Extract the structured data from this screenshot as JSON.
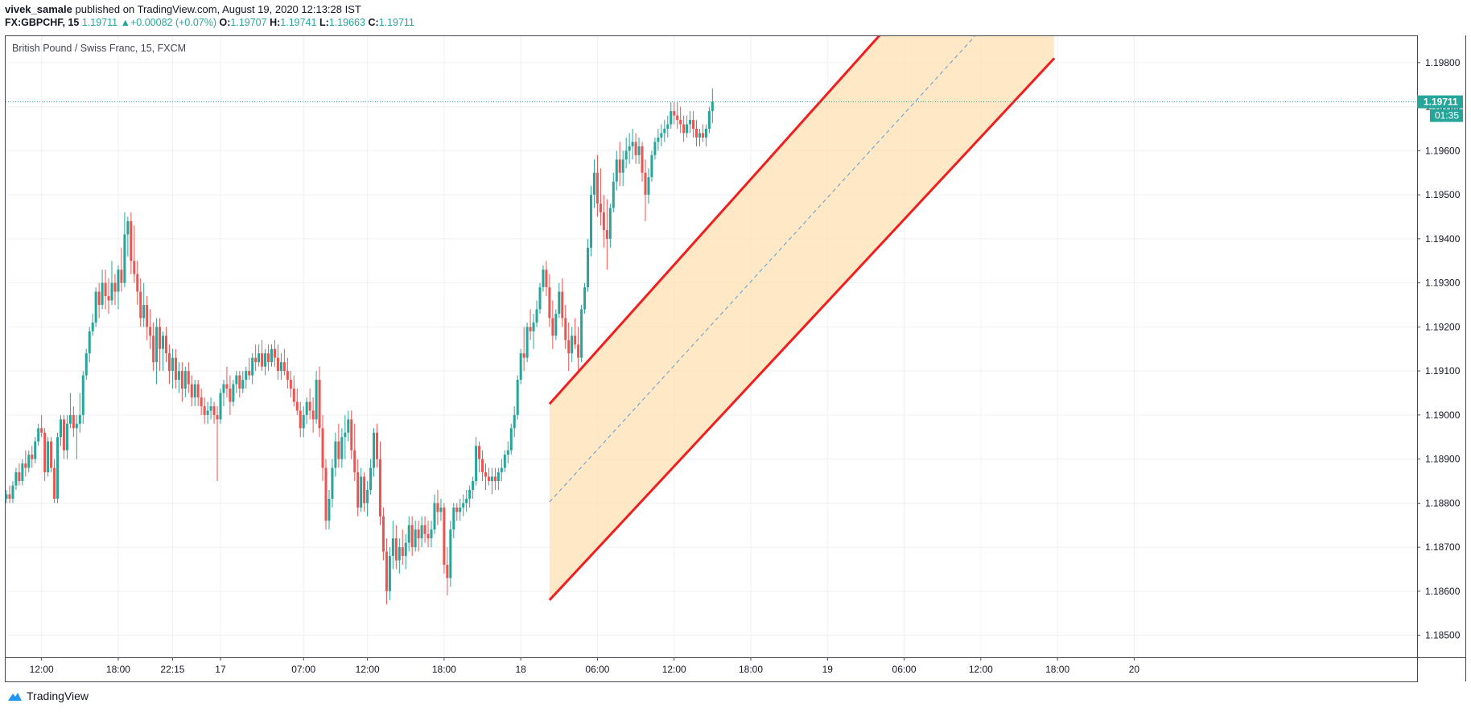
{
  "header": {
    "author": "vivek_samale",
    "published_text": "published on TradingView.com, August 19, 2020 12:13:28 IST",
    "symbol": "FX:GBPCHF, 15",
    "last": "1.19711",
    "change": "+0.00082 (+0.07%)",
    "open_label": "O:",
    "open": "1.19707",
    "high_label": "H:",
    "high": "1.19741",
    "low_label": "L:",
    "low": "1.19663",
    "close_label": "C:",
    "close": "1.19711"
  },
  "footer": {
    "brand": "TradingView",
    "logo_icon": "tradingview-cloud-icon"
  },
  "colors": {
    "up": "#26a69a",
    "down": "#ef5350",
    "channel": "#f01e1e",
    "fill": "#ffe0b2",
    "mid": "#5b9bd5"
  },
  "chart_data": {
    "type": "candlestick",
    "title": "British Pound / Swiss Franc, 15, FXCM",
    "ylim": [
      1.1845,
      1.1986
    ],
    "y_ticks": [
      "1.19800",
      "1.19700",
      "1.19600",
      "1.19500",
      "1.19400",
      "1.19300",
      "1.19200",
      "1.19100",
      "1.19000",
      "1.18900",
      "1.18800",
      "1.18700",
      "1.18600",
      "1.18500"
    ],
    "x_ticks": [
      {
        "label": "12:00",
        "i": 11
      },
      {
        "label": "18:00",
        "i": 35
      },
      {
        "label": "22:15",
        "i": 52
      },
      {
        "label": "17",
        "i": 67
      },
      {
        "label": "07:00",
        "i": 93
      },
      {
        "label": "12:00",
        "i": 113
      },
      {
        "label": "18:00",
        "i": 137
      },
      {
        "label": "18",
        "i": 161
      },
      {
        "label": "06:00",
        "i": 185
      },
      {
        "label": "12:00",
        "i": 209
      },
      {
        "label": "18:00",
        "i": 233
      },
      {
        "label": "19",
        "i": 257
      },
      {
        "label": "06:00",
        "i": 281
      },
      {
        "label": "12:00",
        "i": 305
      },
      {
        "label": "18:00",
        "i": 329
      },
      {
        "label": "20",
        "i": 353
      }
    ],
    "last_price": "1.19711",
    "countdown": "01:35",
    "channel": {
      "start_i": 170,
      "end_i": 328,
      "upper": [
        1.19025,
        1.20305
      ],
      "lower": [
        1.1858,
        1.1981
      ]
    },
    "ohlc": [
      [
        1.1881,
        1.1883,
        1.188,
        1.1882
      ],
      [
        1.1882,
        1.1884,
        1.188,
        1.1881
      ],
      [
        1.1881,
        1.1885,
        1.188,
        1.1884
      ],
      [
        1.1884,
        1.1888,
        1.1883,
        1.1887
      ],
      [
        1.1887,
        1.1889,
        1.1884,
        1.1885
      ],
      [
        1.1885,
        1.189,
        1.1884,
        1.1889
      ],
      [
        1.1889,
        1.1892,
        1.1886,
        1.1888
      ],
      [
        1.1888,
        1.1892,
        1.1887,
        1.1891
      ],
      [
        1.1891,
        1.1893,
        1.1888,
        1.189
      ],
      [
        1.189,
        1.1895,
        1.1889,
        1.1894
      ],
      [
        1.1894,
        1.1898,
        1.1893,
        1.1897
      ],
      [
        1.1897,
        1.19,
        1.1895,
        1.1896
      ],
      [
        1.1896,
        1.1897,
        1.1885,
        1.1887
      ],
      [
        1.1887,
        1.1895,
        1.1886,
        1.1894
      ],
      [
        1.1894,
        1.1895,
        1.1887,
        1.1888
      ],
      [
        1.1888,
        1.189,
        1.188,
        1.1881
      ],
      [
        1.1881,
        1.1896,
        1.188,
        1.1895
      ],
      [
        1.1895,
        1.19,
        1.1893,
        1.1899
      ],
      [
        1.1899,
        1.19,
        1.189,
        1.1892
      ],
      [
        1.1892,
        1.19,
        1.189,
        1.1898
      ],
      [
        1.1898,
        1.1905,
        1.1897,
        1.19
      ],
      [
        1.19,
        1.1902,
        1.1895,
        1.1897
      ],
      [
        1.1897,
        1.19,
        1.189,
        1.1898
      ],
      [
        1.1898,
        1.1905,
        1.1896,
        1.19
      ],
      [
        1.19,
        1.191,
        1.1898,
        1.1909
      ],
      [
        1.1909,
        1.1915,
        1.1908,
        1.1914
      ],
      [
        1.1914,
        1.192,
        1.1912,
        1.1919
      ],
      [
        1.1919,
        1.1923,
        1.1918,
        1.1921
      ],
      [
        1.1921,
        1.1929,
        1.192,
        1.1928
      ],
      [
        1.1928,
        1.193,
        1.1922,
        1.1925
      ],
      [
        1.1925,
        1.1933,
        1.1924,
        1.193
      ],
      [
        1.193,
        1.1933,
        1.1924,
        1.1927
      ],
      [
        1.1927,
        1.1931,
        1.1923,
        1.1926
      ],
      [
        1.1926,
        1.1935,
        1.1925,
        1.193
      ],
      [
        1.193,
        1.1932,
        1.1925,
        1.1928
      ],
      [
        1.1928,
        1.1934,
        1.1924,
        1.1933
      ],
      [
        1.1933,
        1.1938,
        1.1928,
        1.193
      ],
      [
        1.193,
        1.1946,
        1.1929,
        1.1941
      ],
      [
        1.1941,
        1.1945,
        1.1936,
        1.1944
      ],
      [
        1.1944,
        1.1946,
        1.1932,
        1.1935
      ],
      [
        1.1935,
        1.1943,
        1.193,
        1.1932
      ],
      [
        1.1932,
        1.1935,
        1.1925,
        1.1928
      ],
      [
        1.1928,
        1.1931,
        1.192,
        1.1922
      ],
      [
        1.1922,
        1.193,
        1.192,
        1.1925
      ],
      [
        1.1925,
        1.1927,
        1.1917,
        1.192
      ],
      [
        1.192,
        1.1924,
        1.1915,
        1.1918
      ],
      [
        1.1918,
        1.1921,
        1.191,
        1.1912
      ],
      [
        1.1912,
        1.1922,
        1.1907,
        1.192
      ],
      [
        1.192,
        1.1922,
        1.191,
        1.1915
      ],
      [
        1.1915,
        1.1919,
        1.191,
        1.1918
      ],
      [
        1.1918,
        1.192,
        1.1912,
        1.1914
      ],
      [
        1.1914,
        1.1916,
        1.1907,
        1.191
      ],
      [
        1.191,
        1.1915,
        1.1906,
        1.1913
      ],
      [
        1.1913,
        1.1915,
        1.1906,
        1.1908
      ],
      [
        1.1908,
        1.1912,
        1.1905,
        1.191
      ],
      [
        1.191,
        1.1912,
        1.1903,
        1.1906
      ],
      [
        1.1906,
        1.1911,
        1.1904,
        1.191
      ],
      [
        1.191,
        1.1912,
        1.1905,
        1.1907
      ],
      [
        1.1907,
        1.1909,
        1.1902,
        1.1904
      ],
      [
        1.1904,
        1.1908,
        1.1902,
        1.1907
      ],
      [
        1.1907,
        1.1908,
        1.1902,
        1.1904
      ],
      [
        1.1904,
        1.1906,
        1.19,
        1.1902
      ],
      [
        1.1902,
        1.1904,
        1.1898,
        1.19
      ],
      [
        1.19,
        1.1903,
        1.1898,
        1.1901
      ],
      [
        1.1901,
        1.1904,
        1.1899,
        1.1902
      ],
      [
        1.1902,
        1.1903,
        1.1898,
        1.19
      ],
      [
        1.19,
        1.1902,
        1.1885,
        1.1899
      ],
      [
        1.1899,
        1.1906,
        1.1898,
        1.1905
      ],
      [
        1.1905,
        1.1908,
        1.1902,
        1.1907
      ],
      [
        1.1907,
        1.1911,
        1.1904,
        1.1906
      ],
      [
        1.1906,
        1.1909,
        1.19,
        1.1903
      ],
      [
        1.1903,
        1.1908,
        1.1902,
        1.1907
      ],
      [
        1.1907,
        1.191,
        1.1905,
        1.1909
      ],
      [
        1.1909,
        1.191,
        1.1904,
        1.1906
      ],
      [
        1.1906,
        1.191,
        1.1905,
        1.1908
      ],
      [
        1.1908,
        1.1911,
        1.1906,
        1.191
      ],
      [
        1.191,
        1.1913,
        1.1908,
        1.1909
      ],
      [
        1.1909,
        1.1914,
        1.1907,
        1.1913
      ],
      [
        1.1913,
        1.1916,
        1.191,
        1.1912
      ],
      [
        1.1912,
        1.1916,
        1.1911,
        1.1914
      ],
      [
        1.1914,
        1.1917,
        1.191,
        1.1911
      ],
      [
        1.1911,
        1.1915,
        1.1909,
        1.1914
      ],
      [
        1.1914,
        1.1916,
        1.191,
        1.1912
      ],
      [
        1.1912,
        1.1916,
        1.1911,
        1.1915
      ],
      [
        1.1915,
        1.1917,
        1.1911,
        1.1913
      ],
      [
        1.1913,
        1.1916,
        1.1908,
        1.191
      ],
      [
        1.191,
        1.1914,
        1.1908,
        1.1912
      ],
      [
        1.1912,
        1.1915,
        1.1909,
        1.191
      ],
      [
        1.191,
        1.1913,
        1.1906,
        1.1908
      ],
      [
        1.1908,
        1.191,
        1.1904,
        1.1906
      ],
      [
        1.1906,
        1.1909,
        1.1902,
        1.1903
      ],
      [
        1.1903,
        1.1906,
        1.19,
        1.1901
      ],
      [
        1.1901,
        1.1903,
        1.1895,
        1.1897
      ],
      [
        1.1897,
        1.1902,
        1.1895,
        1.19
      ],
      [
        1.19,
        1.1904,
        1.1898,
        1.1903
      ],
      [
        1.1903,
        1.1906,
        1.1899,
        1.1901
      ],
      [
        1.1901,
        1.1904,
        1.1896,
        1.1899
      ],
      [
        1.1899,
        1.191,
        1.1898,
        1.1908
      ],
      [
        1.1908,
        1.1911,
        1.1895,
        1.1897
      ],
      [
        1.1897,
        1.19,
        1.1885,
        1.1888
      ],
      [
        1.1888,
        1.189,
        1.1874,
        1.1876
      ],
      [
        1.1876,
        1.1883,
        1.1874,
        1.1881
      ],
      [
        1.1881,
        1.189,
        1.1879,
        1.1888
      ],
      [
        1.1888,
        1.1896,
        1.1886,
        1.1894
      ],
      [
        1.1894,
        1.1898,
        1.1888,
        1.189
      ],
      [
        1.189,
        1.1897,
        1.1888,
        1.1895
      ],
      [
        1.1895,
        1.19,
        1.189,
        1.1896
      ],
      [
        1.1896,
        1.1901,
        1.1894,
        1.1899
      ],
      [
        1.1899,
        1.1901,
        1.189,
        1.1892
      ],
      [
        1.1892,
        1.1898,
        1.1885,
        1.1887
      ],
      [
        1.1887,
        1.189,
        1.1877,
        1.1879
      ],
      [
        1.1879,
        1.1888,
        1.1878,
        1.1886
      ],
      [
        1.1886,
        1.1887,
        1.1878,
        1.188
      ],
      [
        1.188,
        1.1885,
        1.1877,
        1.1883
      ],
      [
        1.1883,
        1.189,
        1.1882,
        1.1888
      ],
      [
        1.1888,
        1.1897,
        1.1886,
        1.1896
      ],
      [
        1.1896,
        1.1898,
        1.1888,
        1.189
      ],
      [
        1.189,
        1.1894,
        1.1875,
        1.1877
      ],
      [
        1.1877,
        1.1879,
        1.1867,
        1.1869
      ],
      [
        1.1869,
        1.1872,
        1.1857,
        1.186
      ],
      [
        1.186,
        1.187,
        1.1858,
        1.1868
      ],
      [
        1.1868,
        1.1876,
        1.1865,
        1.1872
      ],
      [
        1.1872,
        1.1875,
        1.1865,
        1.1867
      ],
      [
        1.1867,
        1.1872,
        1.1864,
        1.187
      ],
      [
        1.187,
        1.1874,
        1.1866,
        1.1868
      ],
      [
        1.1868,
        1.1873,
        1.1865,
        1.1871
      ],
      [
        1.1871,
        1.1877,
        1.1869,
        1.1875
      ],
      [
        1.1875,
        1.1877,
        1.1868,
        1.187
      ],
      [
        1.187,
        1.1876,
        1.1869,
        1.1874
      ],
      [
        1.1874,
        1.1876,
        1.1869,
        1.1872
      ],
      [
        1.1872,
        1.1877,
        1.187,
        1.1875
      ],
      [
        1.1875,
        1.1877,
        1.1871,
        1.1873
      ],
      [
        1.1873,
        1.1876,
        1.187,
        1.1872
      ],
      [
        1.1872,
        1.1876,
        1.187,
        1.1874
      ],
      [
        1.1874,
        1.1882,
        1.1873,
        1.188
      ],
      [
        1.188,
        1.1883,
        1.1875,
        1.1878
      ],
      [
        1.1878,
        1.1881,
        1.1876,
        1.1879
      ],
      [
        1.1879,
        1.188,
        1.1864,
        1.1866
      ],
      [
        1.1866,
        1.187,
        1.1859,
        1.1863
      ],
      [
        1.1863,
        1.1876,
        1.1861,
        1.1874
      ],
      [
        1.1874,
        1.188,
        1.1872,
        1.1879
      ],
      [
        1.1879,
        1.188,
        1.1876,
        1.1878
      ],
      [
        1.1878,
        1.1881,
        1.1876,
        1.1879
      ],
      [
        1.1879,
        1.1882,
        1.1877,
        1.188
      ],
      [
        1.188,
        1.1883,
        1.1878,
        1.1881
      ],
      [
        1.1881,
        1.1884,
        1.1879,
        1.1883
      ],
      [
        1.1883,
        1.1886,
        1.1881,
        1.1885
      ],
      [
        1.1885,
        1.1895,
        1.1884,
        1.1893
      ],
      [
        1.1893,
        1.1894,
        1.1887,
        1.189
      ],
      [
        1.189,
        1.1892,
        1.1885,
        1.1887
      ],
      [
        1.1887,
        1.1889,
        1.1883,
        1.1886
      ],
      [
        1.1886,
        1.1888,
        1.1884,
        1.1885
      ],
      [
        1.1885,
        1.1888,
        1.1882,
        1.1886
      ],
      [
        1.1886,
        1.1888,
        1.1883,
        1.1885
      ],
      [
        1.1885,
        1.1888,
        1.1883,
        1.1887
      ],
      [
        1.1887,
        1.189,
        1.1885,
        1.1888
      ],
      [
        1.1888,
        1.1892,
        1.1887,
        1.1891
      ],
      [
        1.1891,
        1.1894,
        1.1889,
        1.1892
      ],
      [
        1.1892,
        1.1898,
        1.1891,
        1.1897
      ],
      [
        1.1897,
        1.1902,
        1.1895,
        1.19
      ],
      [
        1.19,
        1.1909,
        1.1899,
        1.1908
      ],
      [
        1.1908,
        1.1915,
        1.1907,
        1.1914
      ],
      [
        1.1914,
        1.192,
        1.191,
        1.1913
      ],
      [
        1.1913,
        1.1921,
        1.1912,
        1.192
      ],
      [
        1.192,
        1.1924,
        1.1917,
        1.1919
      ],
      [
        1.1919,
        1.1923,
        1.1915,
        1.1921
      ],
      [
        1.1921,
        1.1926,
        1.192,
        1.1924
      ],
      [
        1.1924,
        1.193,
        1.1923,
        1.1929
      ],
      [
        1.1929,
        1.1934,
        1.1928,
        1.1933
      ],
      [
        1.1933,
        1.1935,
        1.1927,
        1.1929
      ],
      [
        1.1929,
        1.1932,
        1.192,
        1.1922
      ],
      [
        1.1922,
        1.1926,
        1.1915,
        1.1918
      ],
      [
        1.1918,
        1.1924,
        1.1917,
        1.1923
      ],
      [
        1.1923,
        1.193,
        1.1922,
        1.1928
      ],
      [
        1.1928,
        1.1931,
        1.192,
        1.1922
      ],
      [
        1.1922,
        1.1925,
        1.1915,
        1.1917
      ],
      [
        1.1917,
        1.1921,
        1.191,
        1.1914
      ],
      [
        1.1914,
        1.192,
        1.1912,
        1.1918
      ],
      [
        1.1918,
        1.1922,
        1.1915,
        1.1916
      ],
      [
        1.1916,
        1.192,
        1.191,
        1.1913
      ],
      [
        1.1913,
        1.1925,
        1.1912,
        1.1924
      ],
      [
        1.1924,
        1.193,
        1.1923,
        1.1929
      ],
      [
        1.1929,
        1.194,
        1.1928,
        1.1938
      ],
      [
        1.1938,
        1.1952,
        1.1936,
        1.195
      ],
      [
        1.195,
        1.1958,
        1.1947,
        1.1955
      ],
      [
        1.1955,
        1.1959,
        1.1945,
        1.1948
      ],
      [
        1.1948,
        1.1956,
        1.1943,
        1.1946
      ],
      [
        1.1946,
        1.195,
        1.1938,
        1.1942
      ],
      [
        1.1942,
        1.1949,
        1.1933,
        1.194
      ],
      [
        1.194,
        1.1948,
        1.1938,
        1.1947
      ],
      [
        1.1947,
        1.1955,
        1.1946,
        1.1953
      ],
      [
        1.1953,
        1.196,
        1.1951,
        1.1958
      ],
      [
        1.1958,
        1.1962,
        1.1952,
        1.1955
      ],
      [
        1.1955,
        1.196,
        1.1952,
        1.1958
      ],
      [
        1.1958,
        1.1963,
        1.1956,
        1.196
      ],
      [
        1.196,
        1.1964,
        1.1957,
        1.1961
      ],
      [
        1.1961,
        1.1965,
        1.1958,
        1.1962
      ],
      [
        1.1962,
        1.1964,
        1.1957,
        1.1959
      ],
      [
        1.1959,
        1.1963,
        1.1957,
        1.1961
      ],
      [
        1.1961,
        1.1962,
        1.1953,
        1.1955
      ],
      [
        1.1955,
        1.1958,
        1.1944,
        1.195
      ],
      [
        1.195,
        1.1956,
        1.1948,
        1.1954
      ],
      [
        1.1954,
        1.196,
        1.1953,
        1.1959
      ],
      [
        1.1959,
        1.1963,
        1.1958,
        1.1962
      ],
      [
        1.1962,
        1.1965,
        1.196,
        1.1963
      ],
      [
        1.1963,
        1.1966,
        1.1961,
        1.1964
      ],
      [
        1.1964,
        1.1967,
        1.1962,
        1.1965
      ],
      [
        1.1965,
        1.1968,
        1.1963,
        1.1966
      ],
      [
        1.1966,
        1.1971,
        1.1965,
        1.1969
      ],
      [
        1.1969,
        1.1971,
        1.1966,
        1.1968
      ],
      [
        1.1968,
        1.1971,
        1.1965,
        1.1967
      ],
      [
        1.1967,
        1.197,
        1.1964,
        1.1966
      ],
      [
        1.1966,
        1.1968,
        1.1962,
        1.1964
      ],
      [
        1.1964,
        1.1968,
        1.1963,
        1.1966
      ],
      [
        1.1966,
        1.1969,
        1.1964,
        1.1967
      ],
      [
        1.1967,
        1.1969,
        1.1963,
        1.1965
      ],
      [
        1.1965,
        1.1967,
        1.1961,
        1.1963
      ],
      [
        1.1963,
        1.1965,
        1.1961,
        1.1964
      ],
      [
        1.1964,
        1.1966,
        1.1962,
        1.1963
      ],
      [
        1.1963,
        1.1966,
        1.1961,
        1.1965
      ],
      [
        1.1965,
        1.197,
        1.1964,
        1.1969
      ],
      [
        1.1969,
        1.19741,
        1.19663,
        1.19711
      ]
    ]
  }
}
